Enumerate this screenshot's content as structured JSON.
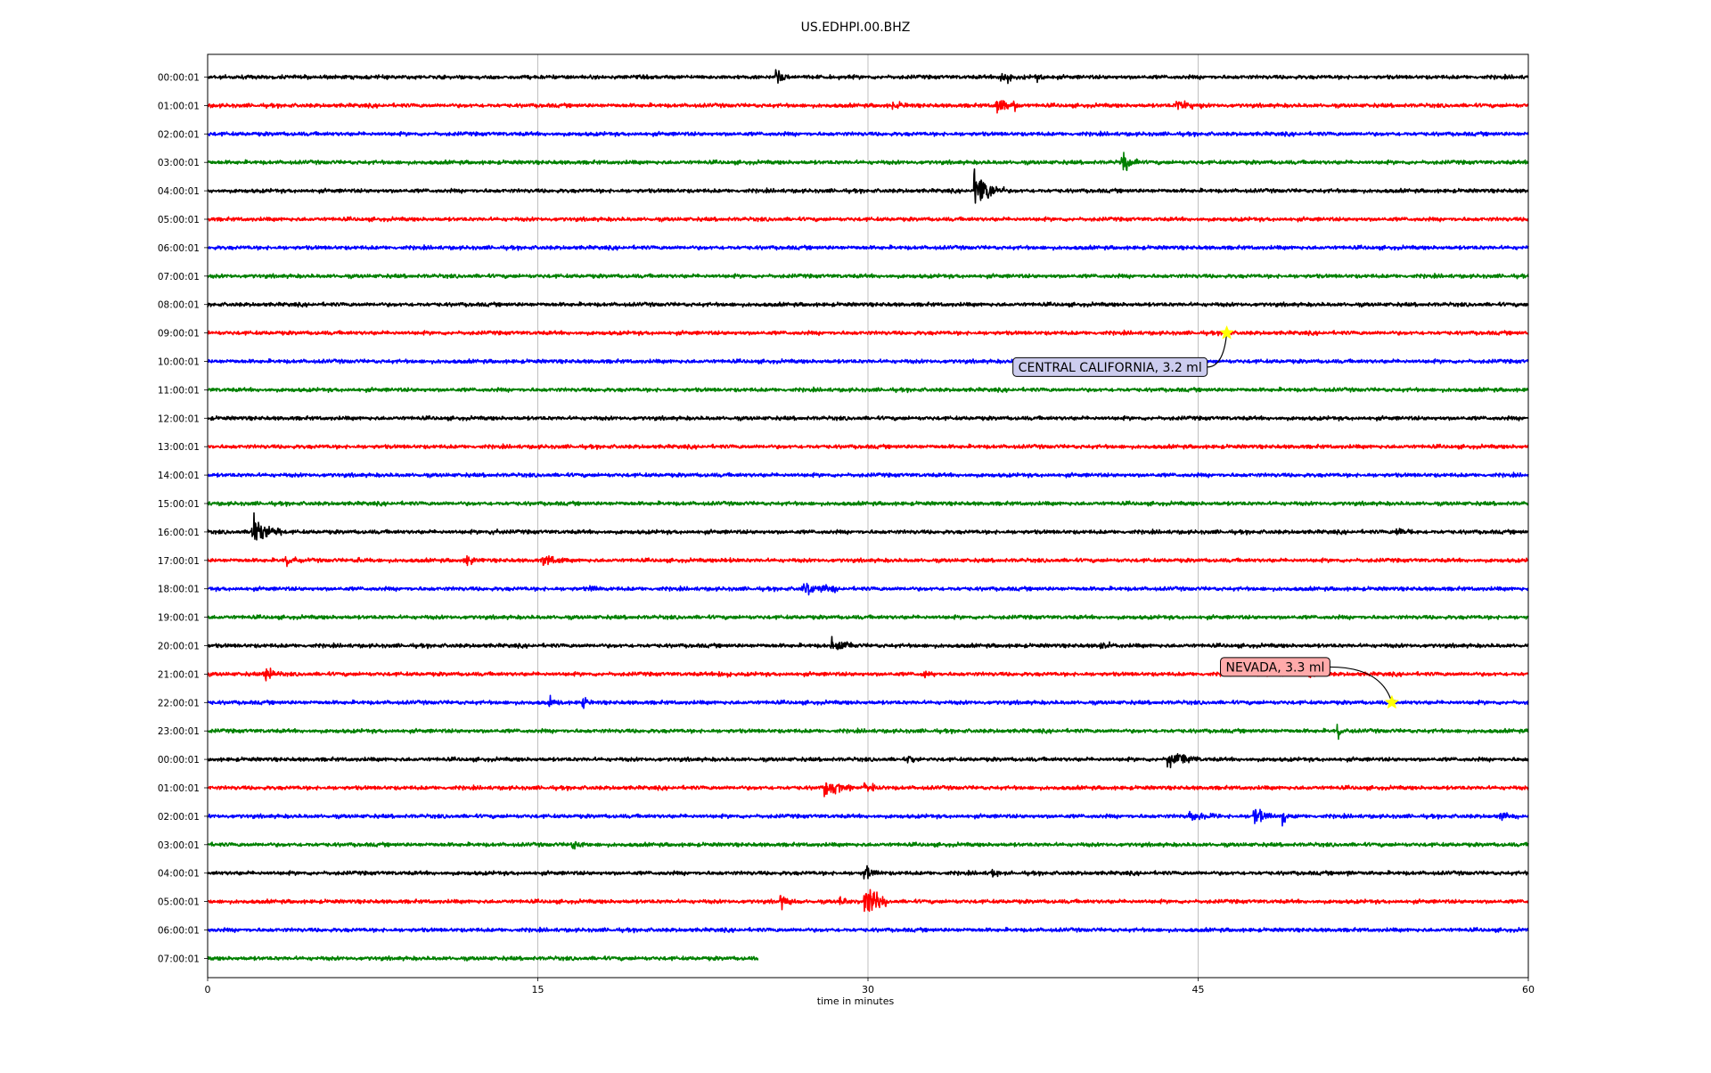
{
  "chart_data": {
    "type": "line",
    "title": "US.EDHPI.00.BHZ",
    "xlabel": "time in minutes",
    "ylabel": "",
    "xlim": [
      0,
      60
    ],
    "x_ticks": [
      0,
      15,
      30,
      45,
      60
    ],
    "grid": "vertical",
    "trace_colors": [
      "#000000",
      "#ff0000",
      "#0000ff",
      "#008000"
    ],
    "row_labels": [
      "00:00:01",
      "01:00:01",
      "02:00:01",
      "03:00:01",
      "04:00:01",
      "05:00:01",
      "06:00:01",
      "07:00:01",
      "08:00:01",
      "09:00:01",
      "10:00:01",
      "11:00:01",
      "12:00:01",
      "13:00:01",
      "14:00:01",
      "15:00:01",
      "16:00:01",
      "17:00:01",
      "18:00:01",
      "19:00:01",
      "20:00:01",
      "21:00:01",
      "22:00:01",
      "23:00:01",
      "00:00:01",
      "01:00:01",
      "02:00:01",
      "03:00:01",
      "04:00:01",
      "05:00:01",
      "06:00:01",
      "07:00:01"
    ],
    "trace_end_minutes": [
      60,
      60,
      60,
      60,
      60,
      60,
      60,
      60,
      60,
      60,
      60,
      60,
      60,
      60,
      60,
      60,
      60,
      60,
      60,
      60,
      60,
      60,
      60,
      60,
      60,
      60,
      60,
      60,
      60,
      60,
      60,
      25
    ],
    "signals": [
      {
        "row": 0,
        "minute": 25.8,
        "amp": 0.9,
        "width": 0.2
      },
      {
        "row": 0,
        "minute": 36.0,
        "amp": 0.4,
        "width": 0.6
      },
      {
        "row": 0,
        "minute": 37.6,
        "amp": 0.3,
        "width": 0.3
      },
      {
        "row": 1,
        "minute": 31.1,
        "amp": 0.3,
        "width": 0.4
      },
      {
        "row": 1,
        "minute": 35.8,
        "amp": 0.4,
        "width": 0.6
      },
      {
        "row": 1,
        "minute": 36.6,
        "amp": 0.5,
        "width": 0.1
      },
      {
        "row": 1,
        "minute": 44.0,
        "amp": 0.35,
        "width": 0.6
      },
      {
        "row": 3,
        "minute": 41.5,
        "amp": 0.6,
        "width": 0.4
      },
      {
        "row": 4,
        "minute": 34.8,
        "amp": 0.9,
        "width": 0.8
      },
      {
        "row": 16,
        "minute": 2.0,
        "amp": 0.8,
        "width": 0.8
      },
      {
        "row": 16,
        "minute": 12.8,
        "amp": 0.3,
        "width": 0.2
      },
      {
        "row": 16,
        "minute": 54.0,
        "amp": 0.3,
        "width": 0.5
      },
      {
        "row": 17,
        "minute": 3.5,
        "amp": 0.3,
        "width": 0.5
      },
      {
        "row": 17,
        "minute": 6.8,
        "amp": 0.25,
        "width": 0.3
      },
      {
        "row": 17,
        "minute": 11.7,
        "amp": 0.3,
        "width": 0.4
      },
      {
        "row": 17,
        "minute": 15.2,
        "amp": 0.35,
        "width": 0.5
      },
      {
        "row": 17,
        "minute": 23.5,
        "amp": 0.25,
        "width": 0.3
      },
      {
        "row": 18,
        "minute": 17.3,
        "amp": 0.2,
        "width": 0.3
      },
      {
        "row": 18,
        "minute": 27.0,
        "amp": 0.4,
        "width": 1.0
      },
      {
        "row": 20,
        "minute": 28.3,
        "amp": 0.4,
        "width": 0.6
      },
      {
        "row": 20,
        "minute": 40.5,
        "amp": 0.3,
        "width": 0.4
      },
      {
        "row": 21,
        "minute": 2.6,
        "amp": 0.9,
        "width": 0.2
      },
      {
        "row": 21,
        "minute": 23.2,
        "amp": 0.25,
        "width": 0.4
      },
      {
        "row": 21,
        "minute": 32.5,
        "amp": 0.25,
        "width": 0.3
      },
      {
        "row": 21,
        "minute": 50.0,
        "amp": 0.2,
        "width": 0.4
      },
      {
        "row": 22,
        "minute": 15.5,
        "amp": 0.3,
        "width": 0.3
      },
      {
        "row": 22,
        "minute": 17.0,
        "amp": 0.5,
        "width": 0.2
      },
      {
        "row": 23,
        "minute": 51.3,
        "amp": 0.5,
        "width": 0.2
      },
      {
        "row": 24,
        "minute": 43.6,
        "amp": 0.4,
        "width": 0.9
      },
      {
        "row": 24,
        "minute": 31.8,
        "amp": 0.2,
        "width": 0.3
      },
      {
        "row": 25,
        "minute": 28.0,
        "amp": 0.4,
        "width": 1.0
      },
      {
        "row": 25,
        "minute": 29.8,
        "amp": 0.35,
        "width": 0.5
      },
      {
        "row": 26,
        "minute": 47.5,
        "amp": 0.6,
        "width": 0.4
      },
      {
        "row": 26,
        "minute": 48.8,
        "amp": 0.7,
        "width": 0.2
      },
      {
        "row": 26,
        "minute": 44.5,
        "amp": 0.25,
        "width": 1.0
      },
      {
        "row": 26,
        "minute": 58.7,
        "amp": 0.3,
        "width": 0.3
      },
      {
        "row": 27,
        "minute": 16.5,
        "amp": 0.3,
        "width": 0.4
      },
      {
        "row": 28,
        "minute": 29.8,
        "amp": 0.5,
        "width": 0.3
      },
      {
        "row": 28,
        "minute": 35.6,
        "amp": 0.2,
        "width": 0.4
      },
      {
        "row": 28,
        "minute": 51.8,
        "amp": 0.2,
        "width": 0.4
      },
      {
        "row": 29,
        "minute": 29.8,
        "amp": 1.2,
        "width": 0.5
      },
      {
        "row": 29,
        "minute": 26.0,
        "amp": 0.4,
        "width": 0.5
      },
      {
        "row": 29,
        "minute": 28.7,
        "amp": 0.3,
        "width": 0.3
      }
    ],
    "annotations": [
      {
        "text": "CENTRAL CALIFORNIA, 3.2 ml",
        "event_minute": 46.3,
        "event_row": 9,
        "label_minute": 41.0,
        "label_row": 10.2,
        "label_bg": "#ccccee"
      },
      {
        "text": "NEVADA, 3.3 ml",
        "event_minute": 53.8,
        "event_row": 22,
        "label_minute": 48.5,
        "label_row": 20.75,
        "label_bg": "#ffaaaa"
      }
    ],
    "event_marker_color": "#ffff00"
  }
}
